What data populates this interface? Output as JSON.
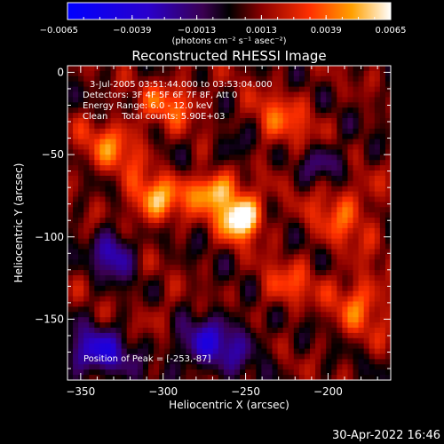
{
  "chart_data": {
    "type": "heatmap",
    "title": "Reconstructed RHESSI Image",
    "xlabel": "Heliocentric X (arcsec)",
    "ylabel": "Heliocentric Y (arcsec)",
    "xlim": [
      -358,
      -162
    ],
    "ylim": [
      -187,
      4
    ],
    "x_ticks": [
      -350,
      -300,
      -250,
      -200
    ],
    "y_ticks": [
      0,
      -50,
      -100,
      -150
    ],
    "colorbar": {
      "ticks": [
        "-0.0065",
        "-0.0039",
        "-0.0013",
        "0.0013",
        "0.0039",
        "0.0065"
      ],
      "range": [
        -0.0065,
        0.0065
      ],
      "unit": "(photons cm⁻² s⁻¹ asec⁻²)"
    },
    "annotations": [
      "3-Jul-2005 03:51:44.000 to 03:53:04.000",
      "Detectors: 3F 4F 5F 6F 7F 8F, Att 0",
      "Energy Range: 6.0 - 12.0 keV",
      "Clean     Total counts: 5.90E+03"
    ],
    "peak_label": "Position of Peak = [-253,-87]",
    "peak": [
      -253,
      -87
    ]
  },
  "footer": {
    "timestamp": "30-Apr-2022 16:46"
  }
}
